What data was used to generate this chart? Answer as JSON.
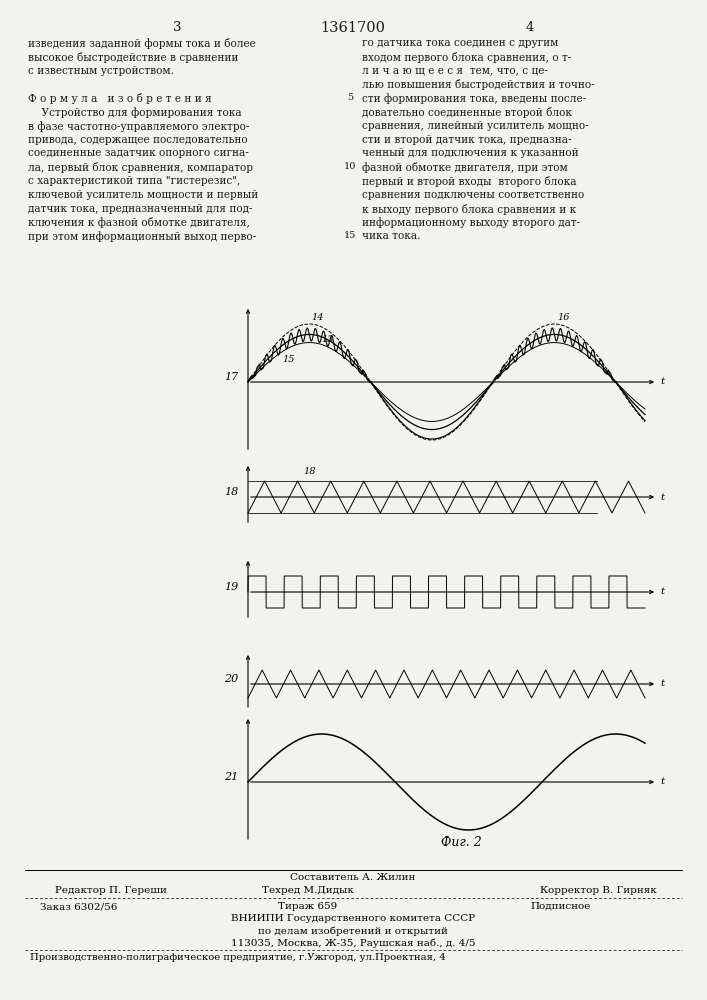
{
  "page_number_left": "3",
  "page_number_center": "1361700",
  "page_number_right": "4",
  "text_left": [
    "изведения заданной формы тока и более",
    "высокое быстродействие в сравнении",
    "с известным устройством.",
    "",
    "Ф о р м у л а   и з о б р е т е н и я",
    "    Устройство для формирования тока",
    "в фазе частотно-управляемого электро-",
    "привода, содержащее последовательно",
    "соединенные задатчик опорного сигна-",
    "ла, первый блок сравнения, компаратор",
    "с характеристикой типа \"гистерезис\",",
    "ключевой усилитель мощности и первый",
    "датчик тока, предназначенный для под-",
    "ключения к фазной обмотке двигателя,",
    "при этом информационный выход перво-"
  ],
  "text_right": [
    "го датчика тока соединен с другим",
    "входом первого блока сравнения, о т-",
    "л и ч а ю щ е е с я  тем, что, с це-",
    "лью повышения быстродействия и точно-",
    "сти формирования тока, введены после-",
    "довательно соединенные второй блок",
    "сравнения, линейный усилитель мощно-",
    "сти и второй датчик тока, предназна-",
    "ченный для подключения к указанной",
    "фазной обмотке двигателя, при этом",
    "первый и второй входы  второго блока",
    "сравнения подключены соответственно",
    "к выходу первого блока сравнения и к",
    "информационному выходу второго дат-",
    "чика тока."
  ],
  "fig_caption": "Фиг. 2",
  "footer_composer": "Составитель А. Жилин",
  "footer_editor": "Редактор П. Гереши",
  "footer_techred": "Техред М.Дидык",
  "footer_corrector": "Корректор В. Гирняк",
  "footer_order": "Заказ 6302/56",
  "footer_tirazh": "Тираж 659",
  "footer_podpisnoe": "Подписное",
  "footer_org1": "ВНИИПИ Государственного комитета СССР",
  "footer_org2": "по делам изобретений и открытий",
  "footer_org3": "113035, Москва, Ж-35, Раушская наб., д. 4/5",
  "footer_bottom": "Производственно-полиграфическое предприятие, г.Ужгород, ул.Проектная, 4",
  "bg_color": "#f2f2ee",
  "text_color": "#1a1a1a"
}
